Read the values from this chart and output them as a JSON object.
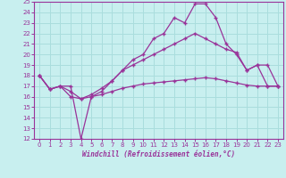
{
  "xlabel": "Windchill (Refroidissement éolien,°C)",
  "ylabel": "",
  "bg_color": "#c8efef",
  "line_color": "#993399",
  "grid_color": "#aadddd",
  "xlim": [
    -0.5,
    23.5
  ],
  "ylim": [
    12,
    25
  ],
  "yticks": [
    12,
    13,
    14,
    15,
    16,
    17,
    18,
    19,
    20,
    21,
    22,
    23,
    24,
    25
  ],
  "xticks": [
    0,
    1,
    2,
    3,
    4,
    5,
    6,
    7,
    8,
    9,
    10,
    11,
    12,
    13,
    14,
    15,
    16,
    17,
    18,
    19,
    20,
    21,
    22,
    23
  ],
  "line1_x": [
    0,
    1,
    2,
    3,
    4,
    5,
    6,
    7,
    8,
    9,
    10,
    11,
    12,
    13,
    14,
    15,
    16,
    17,
    18,
    19,
    20,
    21,
    22,
    23
  ],
  "line1_y": [
    18,
    16.7,
    17,
    17,
    12,
    16,
    16.5,
    17.5,
    18.5,
    19.5,
    20,
    21.5,
    22,
    23.5,
    23,
    24.8,
    24.8,
    23.5,
    21,
    20,
    18.5,
    19,
    17,
    17
  ],
  "line2_x": [
    0,
    1,
    2,
    3,
    4,
    5,
    6,
    7,
    8,
    9,
    10,
    11,
    12,
    13,
    14,
    15,
    16,
    17,
    18,
    19,
    20,
    21,
    22,
    23
  ],
  "line2_y": [
    18,
    16.7,
    17,
    16.5,
    15.8,
    16.2,
    16.8,
    17.5,
    18.5,
    19.0,
    19.5,
    20.0,
    20.5,
    21.0,
    21.5,
    22.0,
    21.5,
    21.0,
    20.5,
    20.2,
    18.5,
    19.0,
    19.0,
    17.0
  ],
  "line3_x": [
    0,
    1,
    2,
    3,
    4,
    5,
    6,
    7,
    8,
    9,
    10,
    11,
    12,
    13,
    14,
    15,
    16,
    17,
    18,
    19,
    20,
    21,
    22,
    23
  ],
  "line3_y": [
    18,
    16.7,
    17,
    16.0,
    15.8,
    16.0,
    16.2,
    16.5,
    16.8,
    17.0,
    17.2,
    17.3,
    17.4,
    17.5,
    17.6,
    17.7,
    17.8,
    17.7,
    17.5,
    17.3,
    17.1,
    17.0,
    17.0,
    17.0
  ]
}
